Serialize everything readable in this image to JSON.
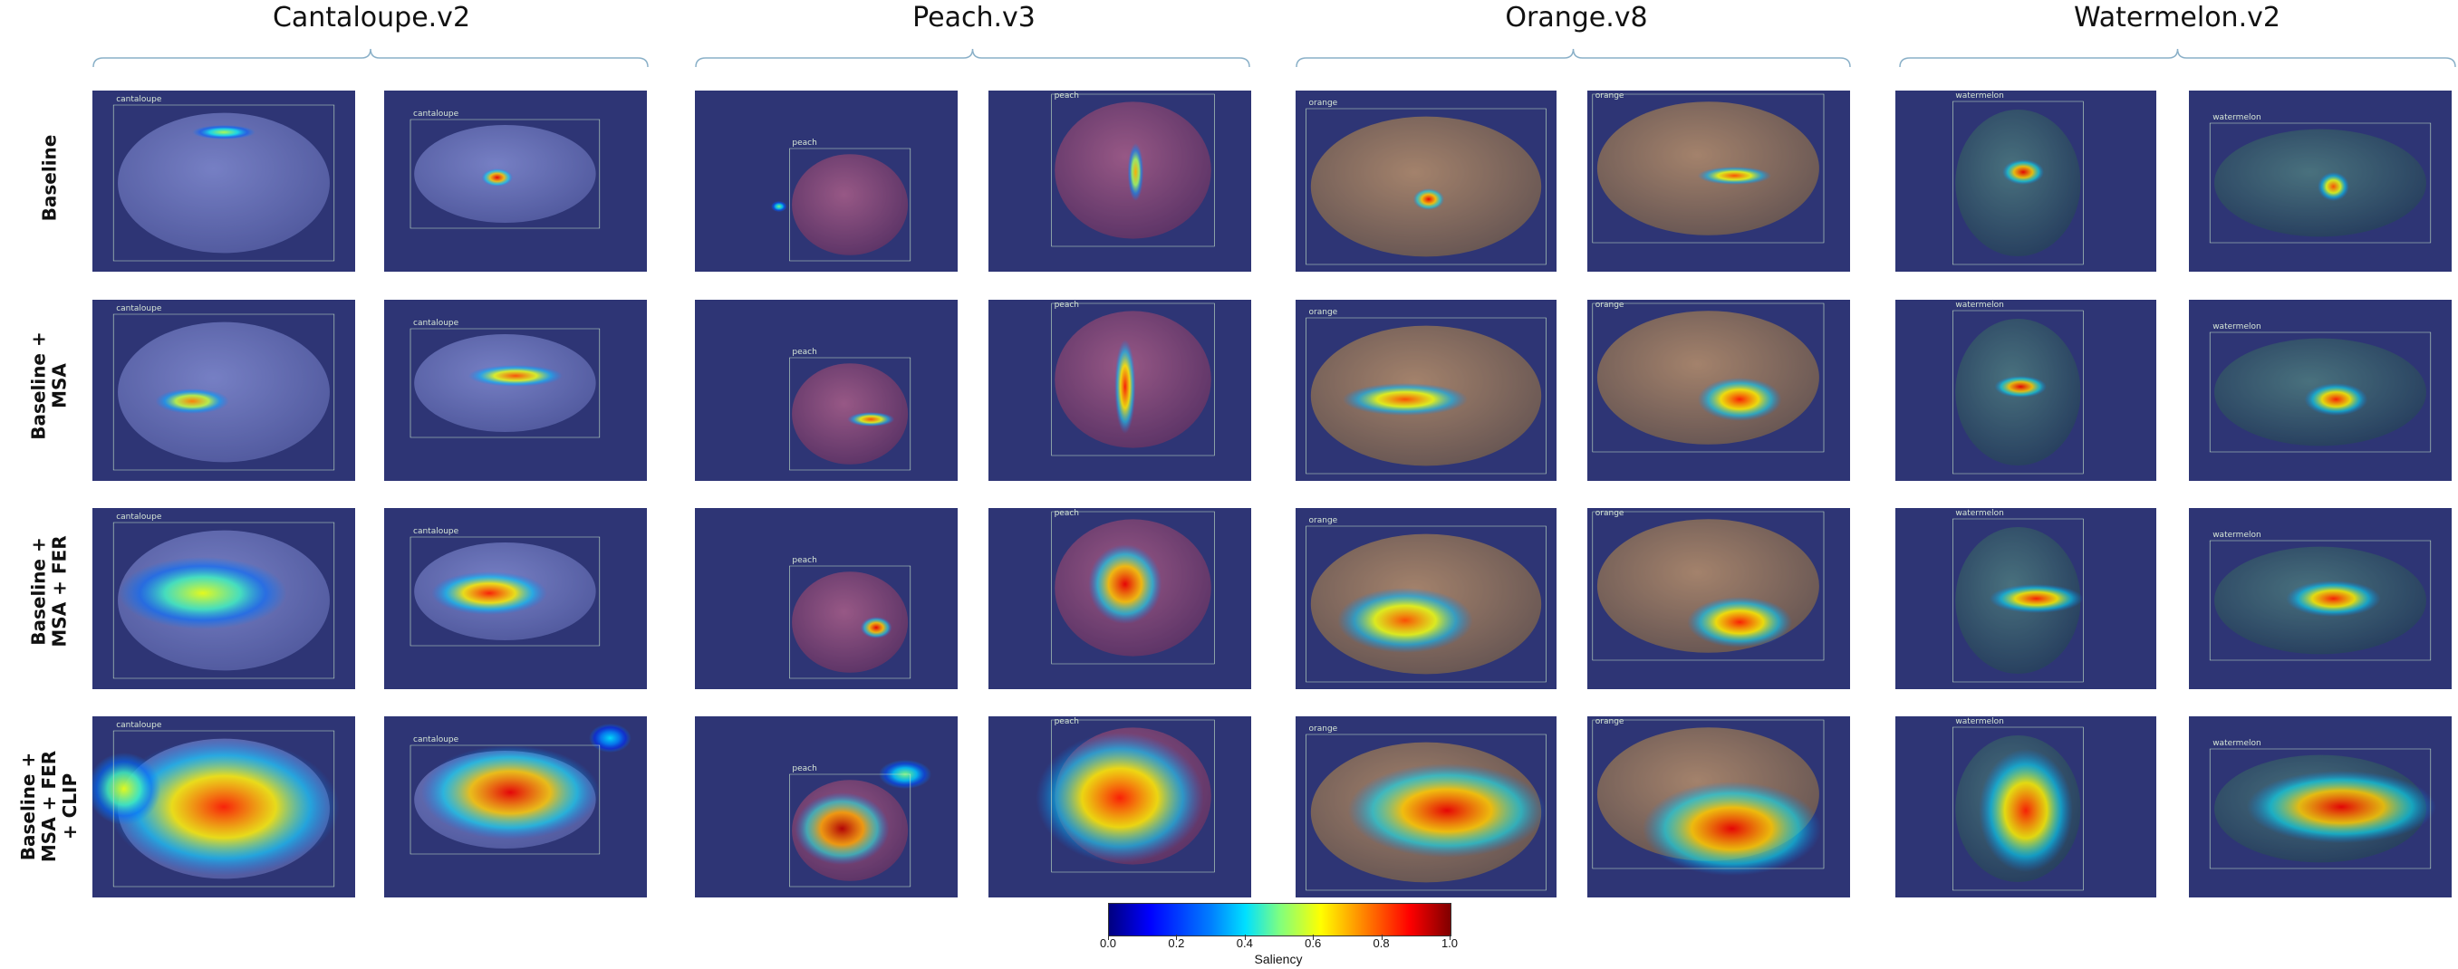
{
  "columns": [
    {
      "title": "Cantaloupe.v2",
      "class_label": "cantaloupe",
      "fruit": "cantaloupe"
    },
    {
      "title": "Peach.v3",
      "class_label": "peach",
      "fruit": "peach"
    },
    {
      "title": "Orange.v8",
      "class_label": "orange",
      "fruit": "orange"
    },
    {
      "title": "Watermelon.v2",
      "class_label": "watermelon",
      "fruit": "watermelon"
    }
  ],
  "rows": [
    {
      "label": "Baseline"
    },
    {
      "label": "Baseline +\nMSA"
    },
    {
      "label": "Baseline +\nMSA + FER"
    },
    {
      "label": "Baseline +\nMSA + FER\n+ CLIP"
    }
  ],
  "colorbar": {
    "title": "Saliency",
    "ticks": [
      "0.0",
      "0.2",
      "0.4",
      "0.6",
      "0.8",
      "1.0"
    ],
    "colormap": "jet"
  }
}
